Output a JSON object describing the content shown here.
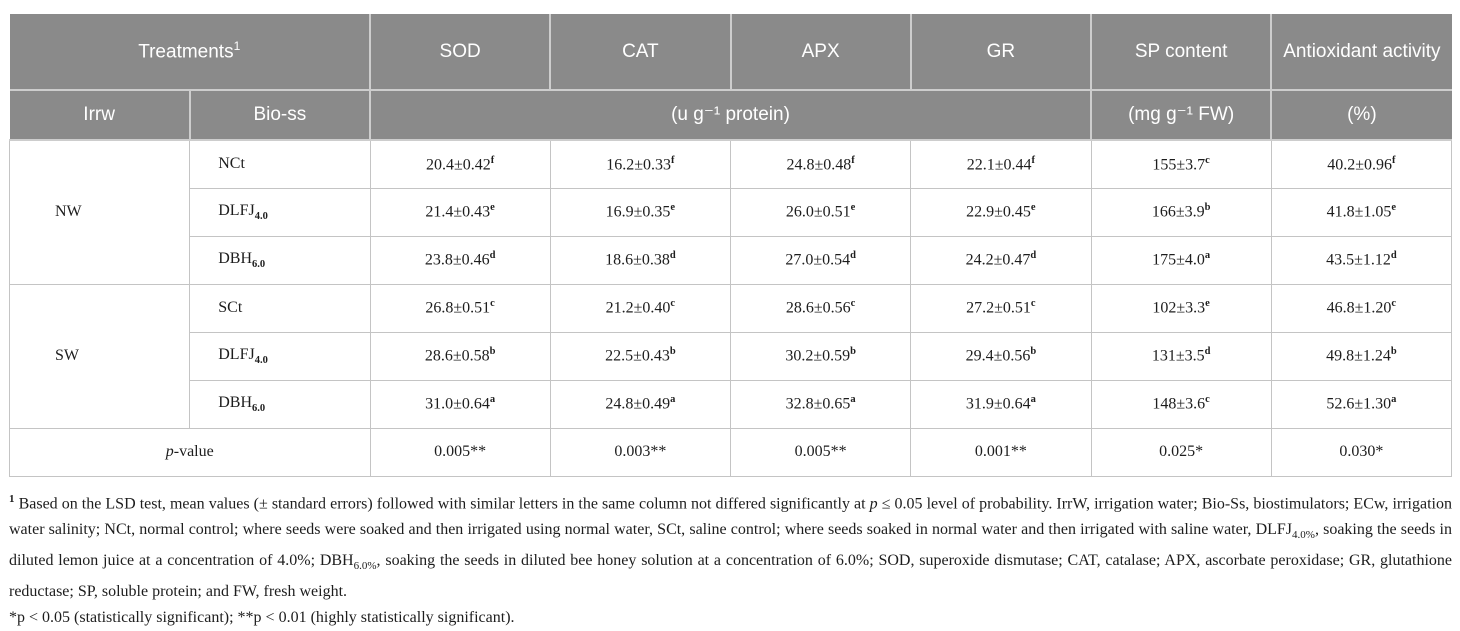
{
  "table": {
    "header": {
      "treatments_label": "Treatments",
      "treatments_sup": "1",
      "columns": [
        "SOD",
        "CAT",
        "APX",
        "GR",
        "SP content",
        "Antioxidant activity"
      ],
      "sub": {
        "irrw": "Irrw",
        "bio_ss": "Bio-ss",
        "enzyme_unit": "(u g⁻¹ protein)",
        "sp_unit": "(mg g⁻¹ FW)",
        "antiox_unit": "(%)"
      }
    },
    "groups": [
      {
        "irrw": "NW",
        "rows": [
          {
            "treatment": {
              "name": "NCt",
              "sub": ""
            },
            "cells": [
              {
                "v": "20.4±0.42",
                "s": "f"
              },
              {
                "v": "16.2±0.33",
                "s": "f"
              },
              {
                "v": "24.8±0.48",
                "s": "f"
              },
              {
                "v": "22.1±0.44",
                "s": "f"
              },
              {
                "v": "155±3.7",
                "s": "c"
              },
              {
                "v": "40.2±0.96",
                "s": "f"
              }
            ]
          },
          {
            "treatment": {
              "name": "DLFJ",
              "sub": "4.0"
            },
            "cells": [
              {
                "v": "21.4±0.43",
                "s": "e"
              },
              {
                "v": "16.9±0.35",
                "s": "e"
              },
              {
                "v": "26.0±0.51",
                "s": "e"
              },
              {
                "v": "22.9±0.45",
                "s": "e"
              },
              {
                "v": "166±3.9",
                "s": "b"
              },
              {
                "v": "41.8±1.05",
                "s": "e"
              }
            ]
          },
          {
            "treatment": {
              "name": "DBH",
              "sub": "6.0"
            },
            "cells": [
              {
                "v": "23.8±0.46",
                "s": "d"
              },
              {
                "v": "18.6±0.38",
                "s": "d"
              },
              {
                "v": "27.0±0.54",
                "s": "d"
              },
              {
                "v": "24.2±0.47",
                "s": "d"
              },
              {
                "v": "175±4.0",
                "s": "a"
              },
              {
                "v": "43.5±1.12",
                "s": "d"
              }
            ]
          }
        ]
      },
      {
        "irrw": "SW",
        "rows": [
          {
            "treatment": {
              "name": "SCt",
              "sub": ""
            },
            "cells": [
              {
                "v": "26.8±0.51",
                "s": "c"
              },
              {
                "v": "21.2±0.40",
                "s": "c"
              },
              {
                "v": "28.6±0.56",
                "s": "c"
              },
              {
                "v": "27.2±0.51",
                "s": "c"
              },
              {
                "v": "102±3.3",
                "s": "e"
              },
              {
                "v": "46.8±1.20",
                "s": "c"
              }
            ]
          },
          {
            "treatment": {
              "name": "DLFJ",
              "sub": "4.0"
            },
            "cells": [
              {
                "v": "28.6±0.58",
                "s": "b"
              },
              {
                "v": "22.5±0.43",
                "s": "b"
              },
              {
                "v": "30.2±0.59",
                "s": "b"
              },
              {
                "v": "29.4±0.56",
                "s": "b"
              },
              {
                "v": "131±3.5",
                "s": "d"
              },
              {
                "v": "49.8±1.24",
                "s": "b"
              }
            ]
          },
          {
            "treatment": {
              "name": "DBH",
              "sub": "6.0"
            },
            "cells": [
              {
                "v": "31.0±0.64",
                "s": "a"
              },
              {
                "v": "24.8±0.49",
                "s": "a"
              },
              {
                "v": "32.8±0.65",
                "s": "a"
              },
              {
                "v": "31.9±0.64",
                "s": "a"
              },
              {
                "v": "148±3.6",
                "s": "c"
              },
              {
                "v": "52.6±1.30",
                "s": "a"
              }
            ]
          }
        ]
      }
    ],
    "pvalue": {
      "label_italic": "p",
      "label_rest": "-value",
      "cells": [
        "0.005**",
        "0.003**",
        "0.005**",
        "0.001**",
        "0.025*",
        "0.030*"
      ]
    }
  },
  "footnote": {
    "main_segments": [
      {
        "t": "sup",
        "x": "1"
      },
      {
        "t": "t",
        "x": " Based on the LSD test, mean values (± standard errors) followed with similar letters in the same column not differed significantly at "
      },
      {
        "t": "i",
        "x": "p"
      },
      {
        "t": "t",
        "x": " ≤ 0.05 level of probability. IrrW, irrigation water; Bio-Ss, biostimulators; ECw, irrigation water salinity; NCt, normal control; where seeds were soaked and then irrigated using normal water, SCt, saline control; where seeds soaked in normal water and then irrigated with saline water, DLFJ"
      },
      {
        "t": "sub",
        "x": "4.0%"
      },
      {
        "t": "t",
        "x": ", soaking the seeds in diluted lemon juice at a concentration of 4.0%; DBH"
      },
      {
        "t": "sub",
        "x": "6.0%"
      },
      {
        "t": "t",
        "x": ", soaking the seeds in diluted bee honey solution at a concentration of 6.0%; SOD, superoxide dismutase; CAT, catalase; APX, ascorbate peroxidase; GR, glutathione reductase; SP, soluble protein; and FW, fresh weight."
      }
    ],
    "significance": "*p < 0.05 (statistically significant); **p < 0.01 (highly statistically significant)."
  },
  "colors": {
    "header_bg": "#8a8a8a",
    "header_text": "#ffffff",
    "body_border": "#c4c4c4",
    "text": "#1d1d1d"
  }
}
